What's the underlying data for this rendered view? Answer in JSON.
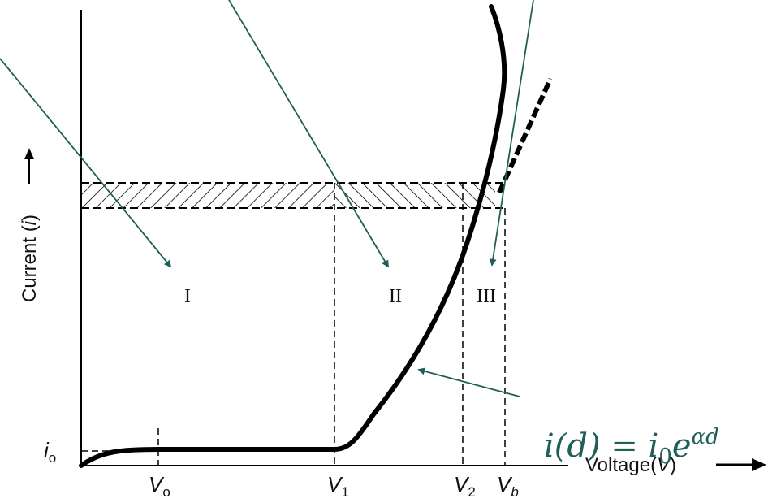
{
  "axes": {
    "y_label": "Current (",
    "y_label_var": "i",
    "y_label_close": ")",
    "x_label": "Voltage(",
    "x_label_var": "V",
    "x_label_close": ")"
  },
  "ticks": {
    "y_io_main": "i",
    "y_io_sub": "o",
    "v0_main": "V",
    "v0_sub": "o",
    "v1_main": "V",
    "v1_sub": "1",
    "v2_main": "V",
    "v2_sub": "2",
    "vb_main": "V",
    "vb_sub": "b"
  },
  "regions": {
    "r1": "I",
    "r2": "II",
    "r3": "III"
  },
  "formula": {
    "lhs": "i(d) = i",
    "sub": "0",
    "base": "e",
    "exp": "αd"
  },
  "colors": {
    "curve": "#000000",
    "arrow": "#1f5f57",
    "formula": "#1f5f57",
    "dash": "#000000"
  }
}
